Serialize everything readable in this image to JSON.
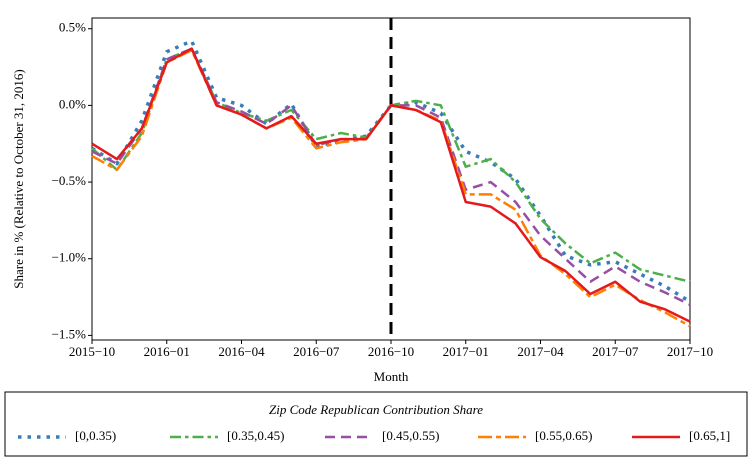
{
  "chart_data": {
    "type": "line",
    "x_label": "Month",
    "y_label": "Share in % (Relative to October 31, 2016)",
    "x": [
      "2015-10",
      "2015-11",
      "2015-12",
      "2016-01",
      "2016-02",
      "2016-03",
      "2016-04",
      "2016-05",
      "2016-06",
      "2016-07",
      "2016-08",
      "2016-09",
      "2016-10",
      "2016-11",
      "2016-12",
      "2017-01",
      "2017-02",
      "2017-03",
      "2017-04",
      "2017-05",
      "2017-06",
      "2017-07",
      "2017-08",
      "2017-09",
      "2017-10"
    ],
    "xticks": [
      {
        "value": "2015-10",
        "label": "2015−10"
      },
      {
        "value": "2016-01",
        "label": "2016−01"
      },
      {
        "value": "2016-04",
        "label": "2016−04"
      },
      {
        "value": "2016-07",
        "label": "2016−07"
      },
      {
        "value": "2016-10",
        "label": "2016−10"
      },
      {
        "value": "2017-01",
        "label": "2017−01"
      },
      {
        "value": "2017-04",
        "label": "2017−04"
      },
      {
        "value": "2017-07",
        "label": "2017−07"
      },
      {
        "value": "2017-10",
        "label": "2017−10"
      }
    ],
    "ylim": [
      -1.53,
      0.57
    ],
    "yticks": [
      {
        "value": -1.5,
        "label": "−1.5%"
      },
      {
        "value": -1.0,
        "label": "−1.0%"
      },
      {
        "value": -0.5,
        "label": "−0.5%"
      },
      {
        "value": 0.0,
        "label": "0.0%"
      },
      {
        "value": 0.5,
        "label": "0.5%"
      }
    ],
    "vline": "2016-10",
    "legend_title": "Zip Code Republican Contribution Share",
    "legend_position": "bottom",
    "series": [
      {
        "name": "[0,0.35)",
        "color": "#377eb8",
        "linestyle": "dotted",
        "values": [
          -0.28,
          -0.38,
          -0.1,
          0.35,
          0.42,
          0.05,
          0.0,
          -0.12,
          0.01,
          -0.27,
          -0.23,
          -0.2,
          0.0,
          0.02,
          -0.05,
          -0.3,
          -0.37,
          -0.48,
          -0.72,
          -0.98,
          -1.04,
          -1.02,
          -1.1,
          -1.18,
          -1.28
        ]
      },
      {
        "name": "[0.35,0.45)",
        "color": "#4daf4a",
        "linestyle": "dashdot",
        "values": [
          -0.28,
          -0.42,
          -0.18,
          0.3,
          0.37,
          0.02,
          -0.05,
          -0.1,
          -0.03,
          -0.22,
          -0.18,
          -0.21,
          0.0,
          0.03,
          0.0,
          -0.4,
          -0.35,
          -0.5,
          -0.74,
          -0.9,
          -1.03,
          -0.96,
          -1.07,
          -1.11,
          -1.15
        ]
      },
      {
        "name": "[0.45,0.55)",
        "color": "#984ea3",
        "linestyle": "dashed",
        "values": [
          -0.3,
          -0.38,
          -0.15,
          0.3,
          0.37,
          0.02,
          -0.04,
          -0.12,
          0.0,
          -0.26,
          -0.22,
          -0.22,
          0.0,
          0.0,
          -0.08,
          -0.55,
          -0.5,
          -0.63,
          -0.85,
          -1.0,
          -1.15,
          -1.05,
          -1.15,
          -1.22,
          -1.3
        ]
      },
      {
        "name": "[0.55,0.65)",
        "color": "#ff7f00",
        "linestyle": "longdash",
        "values": [
          -0.33,
          -0.42,
          -0.2,
          0.28,
          0.36,
          0.0,
          -0.06,
          -0.15,
          -0.08,
          -0.28,
          -0.24,
          -0.22,
          0.0,
          -0.03,
          -0.1,
          -0.58,
          -0.58,
          -0.68,
          -0.98,
          -1.1,
          -1.25,
          -1.17,
          -1.27,
          -1.35,
          -1.44
        ]
      },
      {
        "name": "[0.65,1]",
        "color": "#e41a1c",
        "linestyle": "solid",
        "values": [
          -0.25,
          -0.35,
          -0.15,
          0.28,
          0.37,
          0.0,
          -0.06,
          -0.15,
          -0.07,
          -0.25,
          -0.22,
          -0.22,
          0.0,
          -0.03,
          -0.11,
          -0.63,
          -0.66,
          -0.77,
          -0.99,
          -1.08,
          -1.23,
          -1.15,
          -1.28,
          -1.33,
          -1.41
        ]
      }
    ]
  }
}
